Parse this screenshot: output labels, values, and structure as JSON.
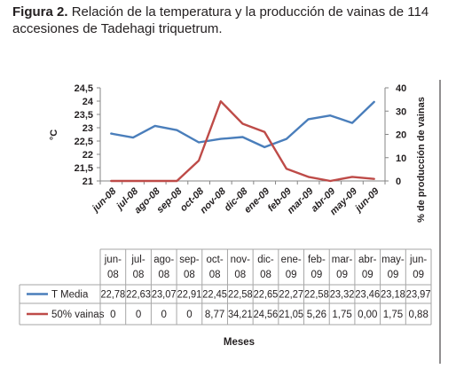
{
  "caption": {
    "label": "Figura 2.",
    "text": "Relación de la temperatura y la producción de vainas de 114 accesiones de Tadehagi triquetrum."
  },
  "chart_data": {
    "type": "line",
    "categories": [
      "jun-08",
      "jul-08",
      "ago-08",
      "sep-08",
      "oct-08",
      "nov-08",
      "dic-08",
      "ene-09",
      "feb-09",
      "mar-09",
      "abr-09",
      "may-09",
      "jun-09"
    ],
    "table_categories": [
      [
        "jun-",
        "08"
      ],
      [
        "jul-",
        "08"
      ],
      [
        "ago-",
        "08"
      ],
      [
        "sep-",
        "08"
      ],
      [
        "oct-",
        "08"
      ],
      [
        "nov-",
        "08"
      ],
      [
        "dic-",
        "08"
      ],
      [
        "ene-",
        "09"
      ],
      [
        "feb-",
        "09"
      ],
      [
        "mar-",
        "09"
      ],
      [
        "abr-",
        "09"
      ],
      [
        "may-",
        "09"
      ],
      [
        "jun-",
        "09"
      ]
    ],
    "series": [
      {
        "name": "T Media",
        "axis": "left",
        "color": "#4a7ebb",
        "values": [
          22.78,
          22.63,
          23.07,
          22.91,
          22.45,
          22.58,
          22.65,
          22.27,
          22.58,
          23.32,
          23.46,
          23.18,
          23.97
        ],
        "labels": [
          "22,78",
          "22,63",
          "23,07",
          "22,91",
          "22,45",
          "22,58",
          "22,65",
          "22,27",
          "22,58",
          "23,32",
          "23,46",
          "23,18",
          "23,97"
        ]
      },
      {
        "name": "50% vainas",
        "axis": "right",
        "color": "#be4b48",
        "values": [
          0,
          0,
          0,
          0,
          8.77,
          34.21,
          24.56,
          21.05,
          5.26,
          1.75,
          0.0,
          1.75,
          0.88
        ],
        "labels": [
          "0",
          "0",
          "0",
          "0",
          "8,77",
          "34,21",
          "24,56",
          "21,05",
          "5,26",
          "1,75",
          "0,00",
          "1,75",
          "0,88"
        ]
      }
    ],
    "ylabel_left": "°C",
    "ylabel_right": "% de producción de vainas",
    "xlabel": "Meses",
    "ylim_left": [
      21,
      24.5
    ],
    "ylim_right": [
      0,
      40
    ],
    "yticks_left": [
      "21",
      "21,5",
      "22",
      "22,5",
      "23",
      "23,5",
      "24",
      "24,5"
    ],
    "yticks_right": [
      "0",
      "10",
      "20",
      "30",
      "40"
    ],
    "grid": false,
    "legend": "data-table"
  }
}
